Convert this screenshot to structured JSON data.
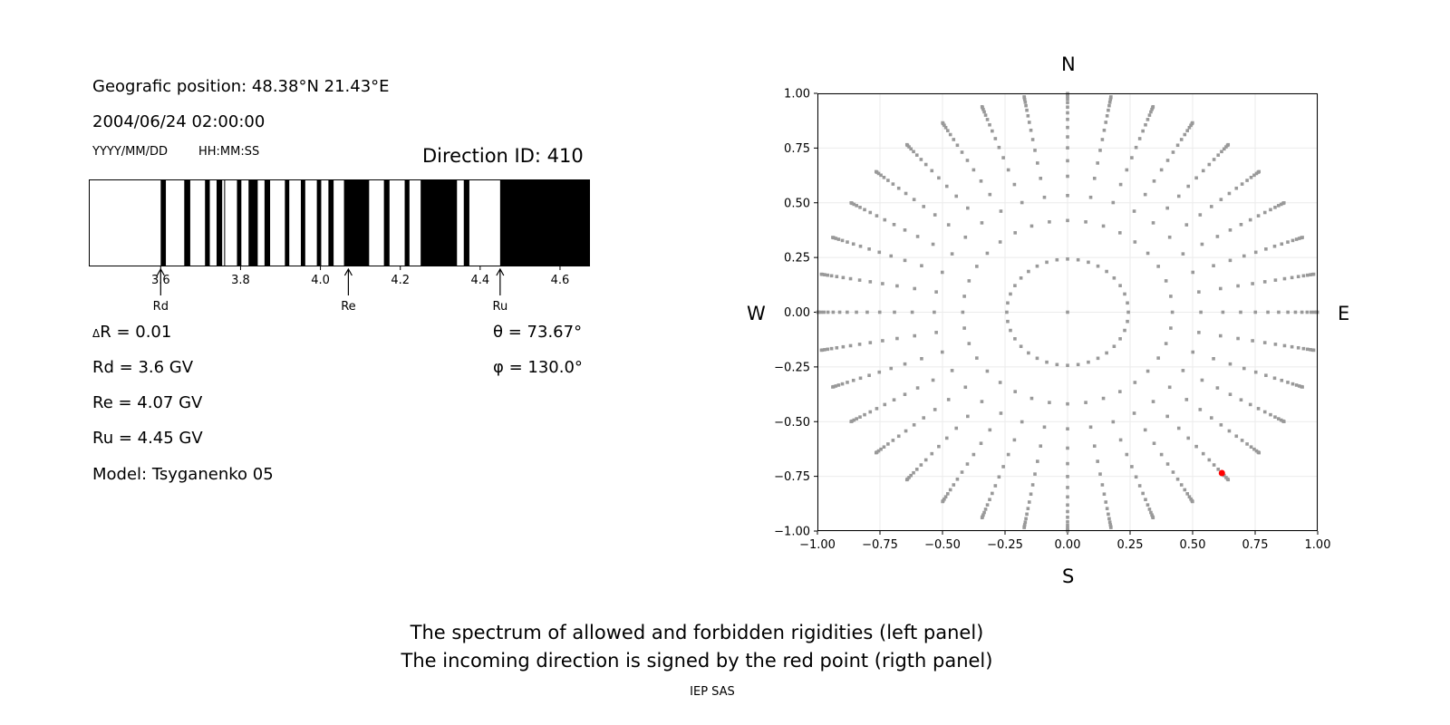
{
  "left_panel": {
    "position": "Geografic position: 48.38°N 21.43°E",
    "datetime": "2004/06/24 02:00:00",
    "date_format": "YYYY/MM/DD",
    "time_format": "HH:MM:SS",
    "direction_id": "Direction ID: 410",
    "delta_symbol": "Δ",
    "delta_r": "R = 0.01",
    "rd": "Rd = 3.6 GV",
    "re": "Re = 4.07 GV",
    "ru": "Ru = 4.45 GV",
    "model": "Model: Tsyganenko 05",
    "theta": "θ = 73.67°",
    "phi": "φ = 130.0°"
  },
  "compass": {
    "n": "N",
    "s": "S",
    "w": "W",
    "e": "E"
  },
  "caption": {
    "line1": "The spectrum of allowed and forbidden rigidities (left panel)",
    "line2": "The incoming direction is signed by the red point (rigth panel)",
    "credit": "IEP SAS"
  },
  "chart_data": [
    {
      "type": "bar",
      "subtype": "rigidity-spectrum",
      "xlim": [
        3.42,
        4.675
      ],
      "xticks": [
        3.6,
        3.8,
        4.0,
        4.2,
        4.4,
        4.6
      ],
      "xtick_labels": [
        "3.6",
        "3.8",
        "4.0",
        "4.2",
        "4.4",
        "4.6"
      ],
      "allowed_color": "#ffffff",
      "forbidden_color": "#000000",
      "forbidden_intervals": [
        [
          3.6,
          3.613
        ],
        [
          3.659,
          3.674
        ],
        [
          3.711,
          3.723
        ],
        [
          3.74,
          3.754
        ],
        [
          3.759,
          3.761
        ],
        [
          3.791,
          3.802
        ],
        [
          3.82,
          3.843
        ],
        [
          3.86,
          3.874
        ],
        [
          3.911,
          3.922
        ],
        [
          3.951,
          3.962
        ],
        [
          3.991,
          4.002
        ],
        [
          4.02,
          4.033
        ],
        [
          4.059,
          4.122
        ],
        [
          4.159,
          4.173
        ],
        [
          4.211,
          4.223
        ],
        [
          4.251,
          4.342
        ],
        [
          4.359,
          4.373
        ],
        [
          4.45,
          4.675
        ]
      ],
      "markers": [
        {
          "label": "Rd",
          "value": 3.6
        },
        {
          "label": "Re",
          "value": 4.07
        },
        {
          "label": "Ru",
          "value": 4.45
        }
      ]
    },
    {
      "type": "scatter",
      "xlim": [
        -1,
        1
      ],
      "ylim": [
        -1,
        1
      ],
      "ticks": [
        -1,
        -0.75,
        -0.5,
        -0.25,
        0,
        0.25,
        0.5,
        0.75,
        1
      ],
      "tick_labels": [
        "−1.00",
        "−0.75",
        "−0.50",
        "−0.25",
        "0.00",
        "0.25",
        "0.50",
        "0.75",
        "1.00"
      ],
      "grid": true,
      "point_color": "#999999",
      "highlight_color": "#ff0000",
      "center_point": [
        0,
        0
      ],
      "ring_radii": [
        0.243,
        0.419,
        0.533,
        0.621,
        0.692,
        0.751,
        0.801,
        0.844,
        0.881,
        0.911,
        0.937,
        0.958,
        0.974,
        0.986,
        0.995,
        0.999
      ],
      "azimuth_step_deg": 10,
      "highlight_point": {
        "x": 0.617,
        "y": -0.735
      }
    }
  ]
}
